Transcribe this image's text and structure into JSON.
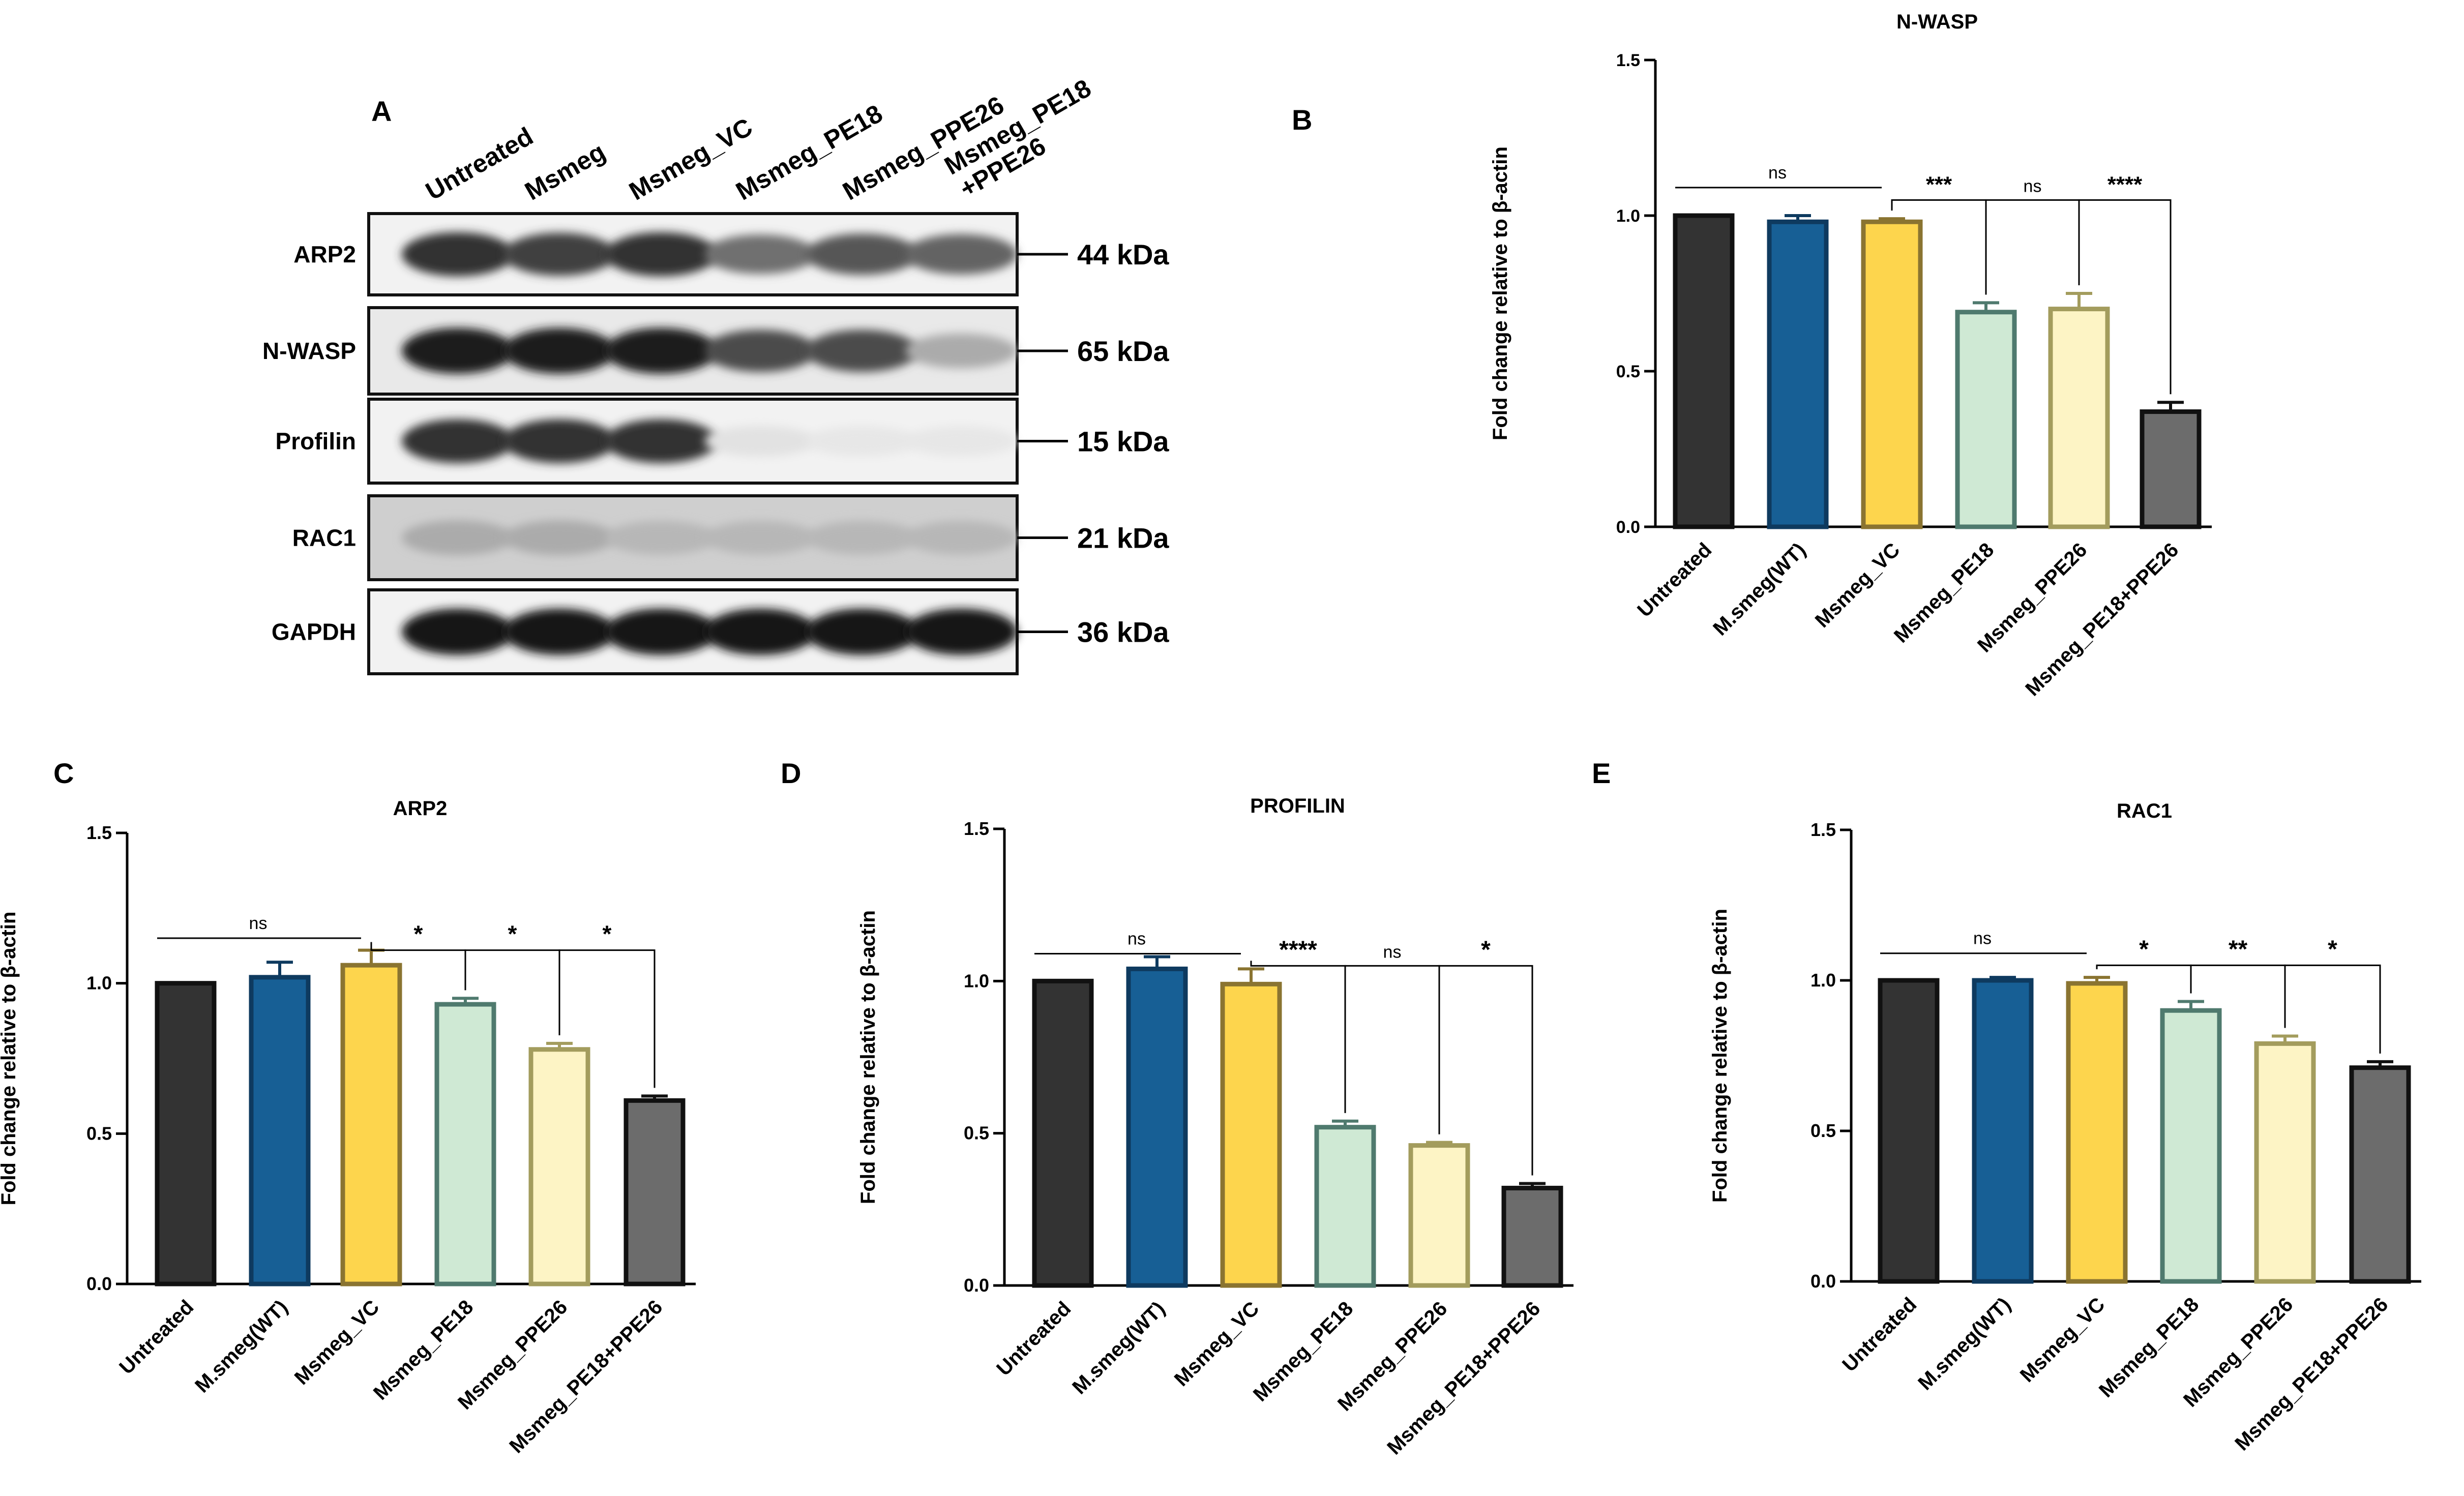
{
  "blot": {
    "panel_letter": "A",
    "lanes": [
      "Untreated",
      "Msmeg",
      "Msmeg_VC",
      "Msmeg_PE18",
      "Msmeg_PPE26",
      "Msmeg_PE18",
      "+PPE26"
    ],
    "rows": [
      {
        "protein": "ARP2",
        "size": "44 kDa",
        "intensity": [
          0.85,
          0.8,
          0.85,
          0.6,
          0.7,
          0.65
        ]
      },
      {
        "protein": "N-WASP",
        "size": "65 kDa",
        "intensity": [
          0.95,
          0.95,
          0.95,
          0.75,
          0.75,
          0.35
        ]
      },
      {
        "protein": "Profilin",
        "size": "15 kDa",
        "intensity": [
          0.85,
          0.85,
          0.85,
          0.12,
          0.1,
          0.1
        ]
      },
      {
        "protein": "RAC1",
        "size": "21 kDa",
        "intensity": [
          0.35,
          0.35,
          0.3,
          0.3,
          0.3,
          0.3
        ]
      },
      {
        "protein": "GAPDH",
        "size": "36 kDa",
        "intensity": [
          0.98,
          0.98,
          0.98,
          0.98,
          0.98,
          0.98
        ]
      }
    ]
  },
  "colors": {
    "fills": [
      "#333333",
      "#175f95",
      "#fdd54d",
      "#cfe9d4",
      "#fdf4c5",
      "#6c6c6c"
    ],
    "strokes": [
      "#111111",
      "#0e3a5f",
      "#8a7431",
      "#4f7a6e",
      "#a39c5d",
      "#111111"
    ]
  },
  "chart_data": [
    {
      "panel": "B",
      "type": "bar",
      "title": "N-WASP",
      "ylabel": "Fold change relative to β-actin",
      "categories": [
        "Untreated",
        "M.smeg(WT)",
        "Msmeg_VC",
        "Msmeg_PE18",
        "Msmeg_PPE26",
        "Msmeg_PE18+PPE26"
      ],
      "values": [
        1.0,
        0.98,
        0.98,
        0.69,
        0.7,
        0.37
      ],
      "errors": [
        0.0,
        0.02,
        0.01,
        0.03,
        0.05,
        0.03
      ],
      "ylim": [
        0,
        1.5
      ],
      "yticks": [
        "0.0",
        "0.5",
        "1.0",
        "1.5"
      ],
      "comparisons": [
        {
          "from": 0,
          "to": 2,
          "label": "ns",
          "style": "line"
        },
        {
          "from": 2,
          "to": 3,
          "label": "***",
          "style": "bracket"
        },
        {
          "from": 3,
          "to": 4,
          "label": "ns",
          "style": "bracket"
        },
        {
          "from": 4,
          "to": 5,
          "label": "****",
          "style": "bracket"
        }
      ]
    },
    {
      "panel": "C",
      "type": "bar",
      "title": "ARP2",
      "ylabel": "Fold change relative to β-actin",
      "categories": [
        "Untreated",
        "M.smeg(WT)",
        "Msmeg_VC",
        "Msmeg_PE18",
        "Msmeg_PPE26",
        "Msmeg_PE18+PPE26"
      ],
      "values": [
        1.0,
        1.02,
        1.06,
        0.93,
        0.78,
        0.61
      ],
      "errors": [
        0.0,
        0.05,
        0.05,
        0.02,
        0.02,
        0.015
      ],
      "ylim": [
        0,
        1.5
      ],
      "yticks": [
        "0.0",
        "0.5",
        "1.0",
        "1.5"
      ],
      "comparisons": [
        {
          "from": 0,
          "to": 2,
          "label": "ns",
          "style": "line"
        },
        {
          "from": 2,
          "to": 3,
          "label": "*",
          "style": "bracket"
        },
        {
          "from": 3,
          "to": 4,
          "label": "*",
          "style": "bracket"
        },
        {
          "from": 4,
          "to": 5,
          "label": "*",
          "style": "bracket"
        }
      ]
    },
    {
      "panel": "D",
      "type": "bar",
      "title": "PROFILIN",
      "ylabel": "Fold change relative to β-actin",
      "categories": [
        "Untreated",
        "M.smeg(WT)",
        "Msmeg_VC",
        "Msmeg_PE18",
        "Msmeg_PPE26",
        "Msmeg_PE18+PPE26"
      ],
      "values": [
        1.0,
        1.04,
        0.99,
        0.52,
        0.46,
        0.32
      ],
      "errors": [
        0.0,
        0.04,
        0.05,
        0.02,
        0.01,
        0.015
      ],
      "ylim": [
        0,
        1.5
      ],
      "yticks": [
        "0.0",
        "0.5",
        "1.0",
        "1.5"
      ],
      "comparisons": [
        {
          "from": 0,
          "to": 2,
          "label": "ns",
          "style": "line"
        },
        {
          "from": 2,
          "to": 3,
          "label": "****",
          "style": "bracket"
        },
        {
          "from": 3,
          "to": 4,
          "label": "ns",
          "style": "bracket"
        },
        {
          "from": 4,
          "to": 5,
          "label": "*",
          "style": "bracket"
        }
      ]
    },
    {
      "panel": "E",
      "type": "bar",
      "title": "RAC1",
      "ylabel": "Fold change relative to β-actin",
      "categories": [
        "Untreated",
        "M.smeg(WT)",
        "Msmeg_VC",
        "Msmeg_PE18",
        "Msmeg_PPE26",
        "Msmeg_PE18+PPE26"
      ],
      "values": [
        1.0,
        1.0,
        0.99,
        0.9,
        0.79,
        0.71
      ],
      "errors": [
        0.0,
        0.01,
        0.02,
        0.03,
        0.025,
        0.02
      ],
      "ylim": [
        0,
        1.5
      ],
      "yticks": [
        "0.0",
        "0.5",
        "1.0",
        "1.5"
      ],
      "comparisons": [
        {
          "from": 0,
          "to": 2,
          "label": "ns",
          "style": "line"
        },
        {
          "from": 2,
          "to": 3,
          "label": "*",
          "style": "bracket"
        },
        {
          "from": 3,
          "to": 4,
          "label": "**",
          "style": "bracket"
        },
        {
          "from": 4,
          "to": 5,
          "label": "*",
          "style": "bracket"
        }
      ]
    }
  ]
}
